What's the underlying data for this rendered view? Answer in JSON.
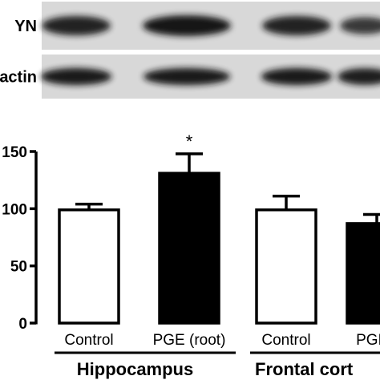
{
  "blot": {
    "rows": [
      {
        "label": "YN",
        "band_intensity": [
          0.85,
          1.0,
          0.85,
          0.6
        ]
      },
      {
        "label": "actin",
        "band_intensity": [
          0.95,
          0.95,
          0.95,
          0.9
        ]
      }
    ],
    "band_color": "#161616",
    "background_color": "#d8d8d8"
  },
  "chart_data": {
    "type": "bar",
    "categories": [
      "Control",
      "PGE (root)",
      "Control",
      "PGE ("
    ],
    "values": [
      99,
      131,
      99,
      87
    ],
    "errors": [
      5,
      17,
      12,
      8
    ],
    "fills": [
      "#ffffff",
      "#000000",
      "#ffffff",
      "#000000"
    ],
    "annotations": [
      "",
      "*",
      "",
      ""
    ],
    "ylim": [
      0,
      150
    ],
    "yticks": [
      0,
      50,
      100,
      150
    ],
    "groups": [
      {
        "label": "Hippocampus",
        "bars": [
          0,
          1
        ]
      },
      {
        "label": "Frontal cort",
        "bars": [
          2,
          3
        ]
      }
    ]
  }
}
